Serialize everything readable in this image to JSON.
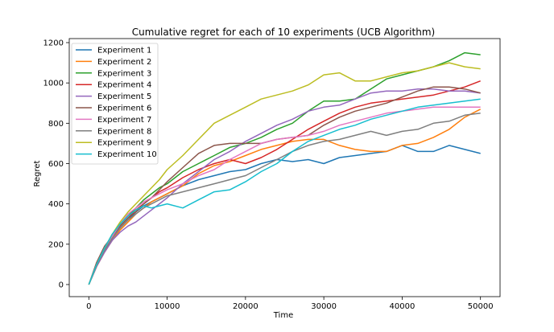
{
  "chart_data": {
    "type": "line",
    "title": "Cumulative regret for each of 10 experiments (UCB Algorithm)",
    "xlabel": "Time",
    "ylabel": "Regret",
    "xlim": [
      -2500,
      52500
    ],
    "ylim": [
      -60,
      1220
    ],
    "xticks": [
      0,
      10000,
      20000,
      30000,
      40000,
      50000
    ],
    "yticks": [
      0,
      200,
      400,
      600,
      800,
      1000,
      1200
    ],
    "grid": false,
    "legend_position": "top-left",
    "x": [
      0,
      1000,
      2000,
      3000,
      4000,
      5000,
      6000,
      7000,
      8000,
      9000,
      10000,
      12000,
      14000,
      16000,
      18000,
      20000,
      22000,
      24000,
      26000,
      28000,
      30000,
      32000,
      34000,
      36000,
      38000,
      40000,
      42000,
      44000,
      46000,
      48000,
      50000
    ],
    "series": [
      {
        "name": "Experiment 1",
        "color": "#1f77b4",
        "values": [
          0,
          90,
          170,
          230,
          280,
          320,
          360,
          390,
          410,
          430,
          450,
          490,
          520,
          540,
          560,
          570,
          600,
          620,
          610,
          620,
          600,
          630,
          640,
          650,
          660,
          690,
          660,
          660,
          690,
          670,
          650
        ]
      },
      {
        "name": "Experiment 2",
        "color": "#ff7f0e",
        "values": [
          0,
          90,
          160,
          220,
          270,
          310,
          350,
          380,
          410,
          430,
          450,
          490,
          550,
          590,
          610,
          640,
          670,
          690,
          710,
          720,
          720,
          690,
          670,
          660,
          660,
          690,
          700,
          730,
          770,
          830,
          870
        ]
      },
      {
        "name": "Experiment 3",
        "color": "#2ca02c",
        "values": [
          0,
          100,
          180,
          250,
          300,
          340,
          380,
          420,
          450,
          480,
          500,
          560,
          600,
          640,
          680,
          700,
          730,
          770,
          800,
          860,
          910,
          910,
          920,
          970,
          1020,
          1040,
          1060,
          1080,
          1110,
          1150,
          1140
        ]
      },
      {
        "name": "Experiment 4",
        "color": "#d62728",
        "values": [
          0,
          95,
          175,
          240,
          290,
          330,
          370,
          400,
          430,
          460,
          480,
          530,
          570,
          600,
          620,
          600,
          630,
          670,
          720,
          770,
          810,
          850,
          880,
          900,
          910,
          920,
          930,
          940,
          960,
          980,
          1010
        ]
      },
      {
        "name": "Experiment 5",
        "color": "#9467bd",
        "values": [
          0,
          90,
          160,
          220,
          260,
          290,
          310,
          340,
          370,
          400,
          430,
          500,
          560,
          620,
          660,
          710,
          750,
          790,
          820,
          860,
          880,
          890,
          920,
          950,
          960,
          960,
          970,
          970,
          960,
          960,
          950
        ]
      },
      {
        "name": "Experiment 6",
        "color": "#8c564b",
        "values": [
          0,
          110,
          190,
          240,
          290,
          330,
          360,
          400,
          430,
          470,
          510,
          580,
          650,
          690,
          700,
          700,
          700,
          720,
          730,
          740,
          790,
          830,
          860,
          880,
          900,
          930,
          960,
          980,
          980,
          970,
          950
        ]
      },
      {
        "name": "Experiment 7",
        "color": "#e377c2",
        "values": [
          0,
          100,
          180,
          240,
          300,
          350,
          380,
          410,
          430,
          450,
          470,
          500,
          540,
          570,
          620,
          660,
          700,
          720,
          730,
          740,
          760,
          790,
          810,
          830,
          850,
          860,
          870,
          880,
          880,
          880,
          880
        ]
      },
      {
        "name": "Experiment 8",
        "color": "#7f7f7f",
        "values": [
          0,
          95,
          170,
          230,
          280,
          320,
          350,
          380,
          400,
          420,
          440,
          460,
          480,
          500,
          520,
          540,
          580,
          620,
          660,
          690,
          710,
          720,
          740,
          760,
          740,
          760,
          770,
          800,
          810,
          840,
          850
        ]
      },
      {
        "name": "Experiment 9",
        "color": "#bcbd22",
        "values": [
          0,
          100,
          180,
          250,
          310,
          360,
          400,
          440,
          480,
          520,
          570,
          640,
          720,
          800,
          840,
          880,
          920,
          940,
          960,
          990,
          1040,
          1050,
          1010,
          1010,
          1030,
          1050,
          1060,
          1080,
          1100,
          1080,
          1070
        ]
      },
      {
        "name": "Experiment 10",
        "color": "#17becf",
        "values": [
          0,
          100,
          180,
          250,
          300,
          340,
          370,
          390,
          380,
          390,
          400,
          380,
          420,
          460,
          470,
          510,
          560,
          600,
          660,
          710,
          740,
          770,
          790,
          820,
          840,
          860,
          880,
          890,
          900,
          910,
          920
        ]
      }
    ]
  }
}
